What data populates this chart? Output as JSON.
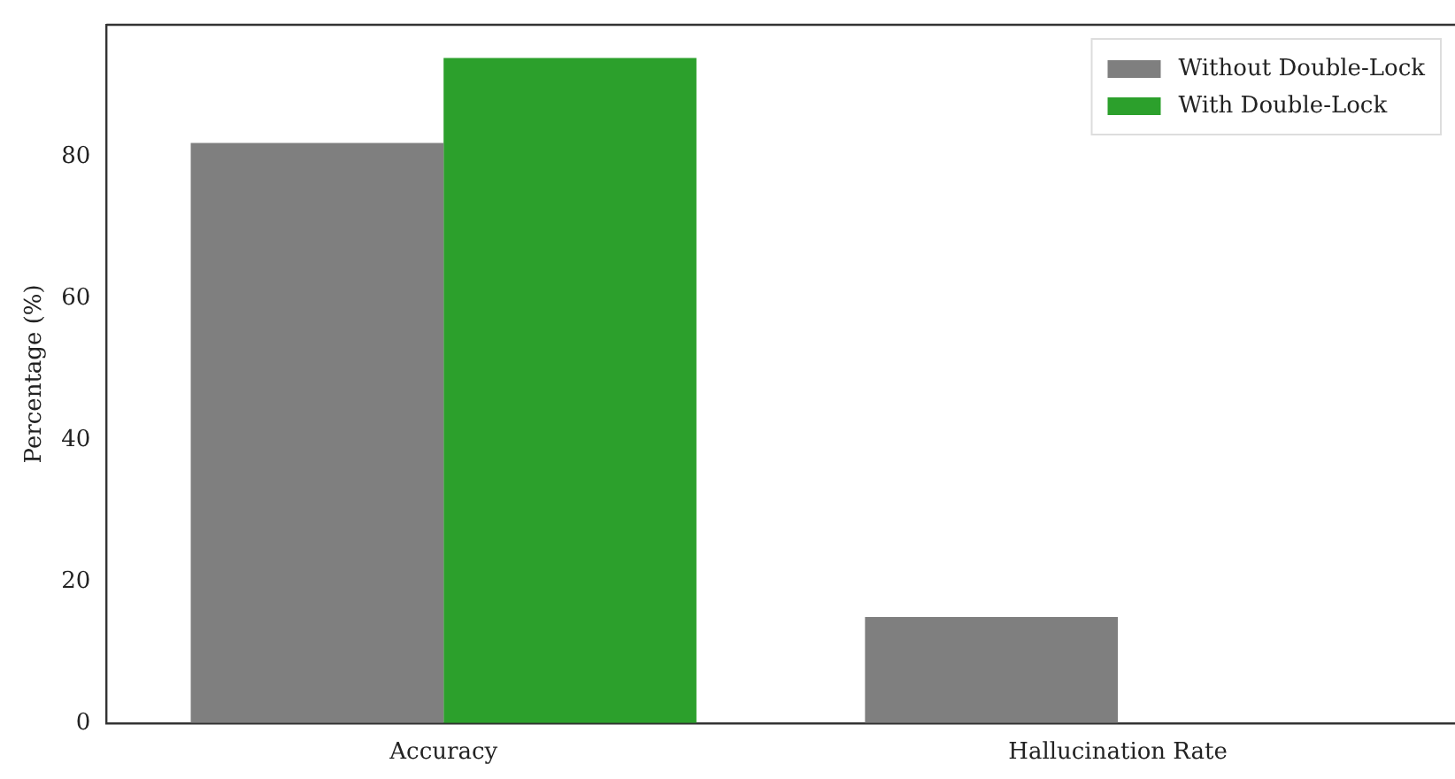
{
  "chart_data": {
    "type": "bar",
    "ylabel": "Percentage (%)",
    "categories": [
      "Accuracy",
      "Hallucination Rate"
    ],
    "series": [
      {
        "name": "Without Double-Lock",
        "color": "#7f7f7f",
        "values": [
          82,
          15
        ]
      },
      {
        "name": "With Double-Lock",
        "color": "#2ca02c",
        "values": [
          94,
          0
        ]
      }
    ],
    "ylim": [
      0,
      98.7
    ],
    "yticks": [
      0,
      20,
      40,
      60,
      80
    ],
    "grid": false,
    "legend": "top right"
  }
}
